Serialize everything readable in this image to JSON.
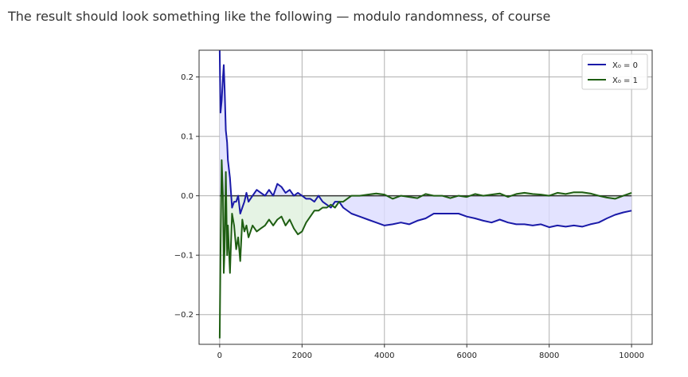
{
  "caption": "The result should look something like the following — modulo randomness, of course",
  "chart_data": {
    "type": "line",
    "xlim": [
      -500,
      10500
    ],
    "ylim": [
      -0.25,
      0.245
    ],
    "xticks": [
      0,
      2000,
      4000,
      6000,
      8000,
      10000
    ],
    "xtick_labels": [
      "0",
      "2000",
      "4000",
      "6000",
      "8000",
      "10000"
    ],
    "yticks": [
      -0.2,
      -0.1,
      0.0,
      0.1,
      0.2
    ],
    "ytick_labels": [
      "−0.2",
      "−0.1",
      "0.0",
      "0.1",
      "0.2"
    ],
    "grid": true,
    "legend_position": "top-right",
    "series": [
      {
        "name": "X₀ = 0",
        "color": "#1a1aa8",
        "fill": "#dcdcff",
        "x": [
          0,
          20,
          50,
          80,
          100,
          120,
          150,
          180,
          200,
          250,
          300,
          350,
          400,
          450,
          500,
          550,
          600,
          650,
          700,
          800,
          900,
          1000,
          1100,
          1200,
          1300,
          1400,
          1500,
          1600,
          1700,
          1800,
          1900,
          2000,
          2100,
          2200,
          2300,
          2400,
          2500,
          2600,
          2700,
          2800,
          2900,
          3000,
          3200,
          3400,
          3600,
          3800,
          4000,
          4200,
          4400,
          4600,
          4800,
          5000,
          5200,
          5400,
          5600,
          5800,
          6000,
          6200,
          6400,
          6600,
          6800,
          7000,
          7200,
          7400,
          7600,
          7800,
          8000,
          8200,
          8400,
          8600,
          8800,
          9000,
          9200,
          9400,
          9600,
          9800,
          10000
        ],
        "y": [
          0.245,
          0.14,
          0.16,
          0.2,
          0.22,
          0.18,
          0.11,
          0.09,
          0.06,
          0.03,
          -0.02,
          -0.01,
          -0.01,
          0.0,
          -0.03,
          -0.02,
          -0.01,
          0.005,
          -0.01,
          0.0,
          0.01,
          0.005,
          0.0,
          0.01,
          0.0,
          0.02,
          0.015,
          0.005,
          0.01,
          0.0,
          0.005,
          0.0,
          -0.005,
          -0.005,
          -0.01,
          0.0,
          -0.01,
          -0.015,
          -0.02,
          -0.01,
          -0.01,
          -0.02,
          -0.03,
          -0.035,
          -0.04,
          -0.045,
          -0.05,
          -0.048,
          -0.045,
          -0.048,
          -0.042,
          -0.038,
          -0.03,
          -0.03,
          -0.03,
          -0.03,
          -0.035,
          -0.038,
          -0.042,
          -0.045,
          -0.04,
          -0.045,
          -0.048,
          -0.048,
          -0.05,
          -0.048,
          -0.053,
          -0.05,
          -0.052,
          -0.05,
          -0.052,
          -0.048,
          -0.045,
          -0.038,
          -0.032,
          -0.028,
          -0.025
        ]
      },
      {
        "name": "X₀ = 1",
        "color": "#1e5e12",
        "fill": "#dff0dd",
        "x": [
          0,
          20,
          50,
          80,
          100,
          120,
          150,
          180,
          200,
          250,
          300,
          350,
          400,
          450,
          500,
          550,
          600,
          650,
          700,
          800,
          900,
          1000,
          1100,
          1200,
          1300,
          1400,
          1500,
          1600,
          1700,
          1800,
          1900,
          2000,
          2100,
          2200,
          2300,
          2400,
          2500,
          2600,
          2700,
          2800,
          2900,
          3000,
          3200,
          3400,
          3600,
          3800,
          4000,
          4200,
          4400,
          4600,
          4800,
          5000,
          5200,
          5400,
          5600,
          5800,
          6000,
          6200,
          6400,
          6600,
          6800,
          7000,
          7200,
          7400,
          7600,
          7800,
          8000,
          8200,
          8400,
          8600,
          8800,
          9000,
          9200,
          9400,
          9600,
          9800,
          10000
        ],
        "y": [
          -0.24,
          -0.1,
          0.06,
          0.0,
          -0.13,
          -0.09,
          0.04,
          -0.1,
          -0.05,
          -0.13,
          -0.03,
          -0.05,
          -0.09,
          -0.07,
          -0.11,
          -0.04,
          -0.06,
          -0.05,
          -0.07,
          -0.05,
          -0.06,
          -0.055,
          -0.05,
          -0.04,
          -0.05,
          -0.04,
          -0.035,
          -0.05,
          -0.04,
          -0.055,
          -0.065,
          -0.06,
          -0.045,
          -0.035,
          -0.025,
          -0.025,
          -0.02,
          -0.02,
          -0.015,
          -0.02,
          -0.01,
          -0.01,
          0.0,
          0.0,
          0.002,
          0.004,
          0.002,
          -0.005,
          0.0,
          -0.002,
          -0.004,
          0.003,
          0.0,
          0.0,
          -0.004,
          0.0,
          -0.002,
          0.003,
          0.0,
          0.002,
          0.004,
          -0.002,
          0.003,
          0.005,
          0.003,
          0.002,
          0.0,
          0.005,
          0.003,
          0.006,
          0.006,
          0.004,
          0.0,
          -0.003,
          -0.005,
          0.0,
          0.005
        ]
      }
    ]
  }
}
